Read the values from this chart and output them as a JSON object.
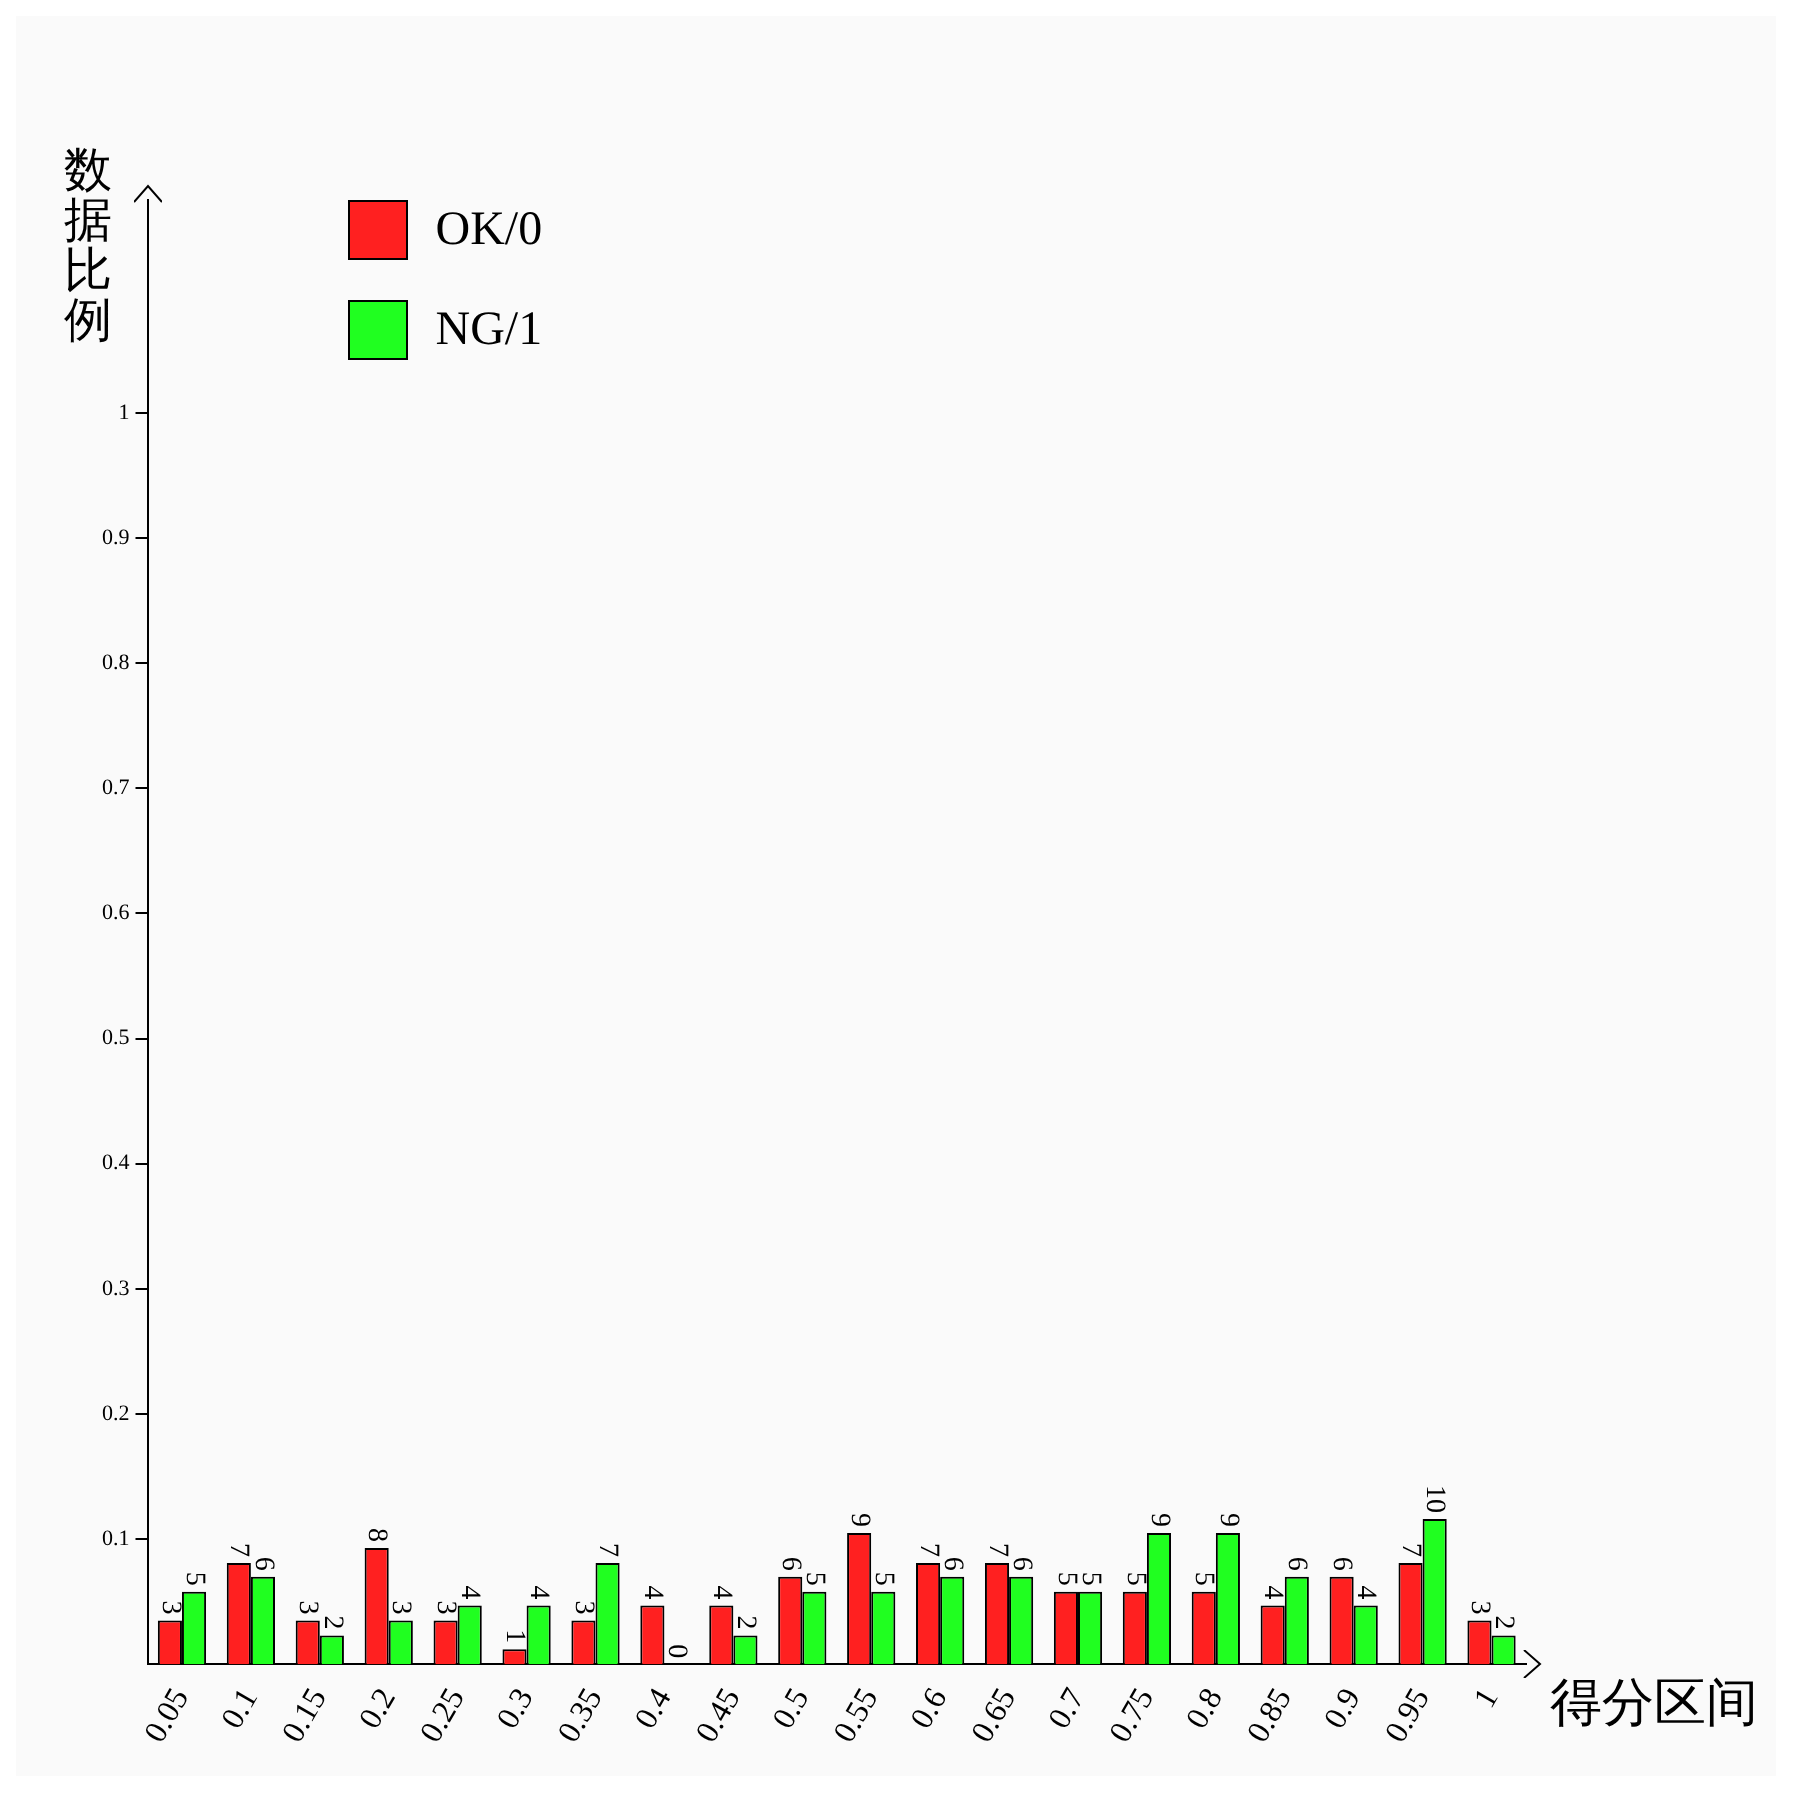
{
  "chart_data": {
    "type": "bar",
    "xlabel": "得分区间",
    "ylabel": "数据比例",
    "categories": [
      "0.05",
      "0.1",
      "0.15",
      "0.2",
      "0.25",
      "0.3",
      "0.35",
      "0.4",
      "0.45",
      "0.5",
      "0.55",
      "0.6",
      "0.65",
      "0.7",
      "0.75",
      "0.8",
      "0.85",
      "0.9",
      "0.95",
      "1"
    ],
    "series": [
      {
        "name": "OK/0",
        "color": "#ff2020",
        "values": [
          0.035,
          0.081,
          0.035,
          0.093,
          0.035,
          0.012,
          0.035,
          0.047,
          0.047,
          0.07,
          0.105,
          0.081,
          0.081,
          0.058,
          0.058,
          0.058,
          0.047,
          0.07,
          0.081,
          0.035
        ]
      },
      {
        "name": "NG/1",
        "color": "#20ff20",
        "values": [
          0.058,
          0.07,
          0.023,
          0.035,
          0.047,
          0.047,
          0.081,
          0,
          0.023,
          0.058,
          0.058,
          0.07,
          0.07,
          0.058,
          0.105,
          0.105,
          0.07,
          0.047,
          0.116,
          0.023
        ]
      }
    ],
    "annotations": [
      {
        "text": "3",
        "x": "0.05",
        "y": 0.035
      },
      {
        "text": "5",
        "x": "0.05",
        "y": 0.058
      },
      {
        "text": "7",
        "x": "0.1",
        "y": 0.081
      },
      {
        "text": "6",
        "x": "0.1",
        "y": 0.07
      },
      {
        "text": "3",
        "x": "0.15",
        "y": 0.035
      },
      {
        "text": "2",
        "x": "0.15",
        "y": 0.023
      },
      {
        "text": "8",
        "x": "0.2",
        "y": 0.093
      },
      {
        "text": "3",
        "x": "0.2",
        "y": 0.035
      },
      {
        "text": "3",
        "x": "0.25",
        "y": 0.035
      },
      {
        "text": "4",
        "x": "0.25",
        "y": 0.047
      },
      {
        "text": "1",
        "x": "0.3",
        "y": 0.012
      },
      {
        "text": "4",
        "x": "0.3",
        "y": 0.047
      },
      {
        "text": "3",
        "x": "0.35",
        "y": 0.035
      },
      {
        "text": "7",
        "x": "0.35",
        "y": 0.081
      },
      {
        "text": "4",
        "x": "0.4",
        "y": 0.047
      },
      {
        "text": "0",
        "x": "0.4",
        "y": 0
      },
      {
        "text": "4",
        "x": "0.45",
        "y": 0.047
      },
      {
        "text": "2",
        "x": "0.45",
        "y": 0.023
      },
      {
        "text": "6",
        "x": "0.5",
        "y": 0.07
      },
      {
        "text": "5",
        "x": "0.5",
        "y": 0.058
      },
      {
        "text": "9",
        "x": "0.55",
        "y": 0.105
      },
      {
        "text": "5",
        "x": "0.55",
        "y": 0.058
      },
      {
        "text": "7",
        "x": "0.6",
        "y": 0.081
      },
      {
        "text": "6",
        "x": "0.6",
        "y": 0.07
      },
      {
        "text": "7",
        "x": "0.65",
        "y": 0.081
      },
      {
        "text": "6",
        "x": "0.65",
        "y": 0.07
      },
      {
        "text": "5",
        "x": "0.7",
        "y": 0.058
      },
      {
        "text": "5",
        "x": "0.7",
        "y": 0.058
      },
      {
        "text": "5",
        "x": "0.75",
        "y": 0.058
      },
      {
        "text": "9",
        "x": "0.75",
        "y": 0.105
      },
      {
        "text": "5",
        "x": "0.8",
        "y": 0.058
      },
      {
        "text": "9",
        "x": "0.8",
        "y": 0.105
      },
      {
        "text": "4",
        "x": "0.85",
        "y": 0.047
      },
      {
        "text": "6",
        "x": "0.85",
        "y": 0.07
      },
      {
        "text": "6",
        "x": "0.9",
        "y": 0.07
      },
      {
        "text": "4",
        "x": "0.9",
        "y": 0.047
      },
      {
        "text": "7",
        "x": "0.95",
        "y": 0.081
      },
      {
        "text": "10",
        "x": "0.95",
        "y": 0.116
      },
      {
        "text": "3",
        "x": "1",
        "y": 0.035
      },
      {
        "text": "2",
        "x": "1",
        "y": 0.023
      }
    ],
    "ylim": [
      0,
      1.17
    ],
    "yticks": [
      0.1,
      0.2,
      0.3,
      0.4,
      0.5,
      0.6,
      0.7,
      0.8,
      0.9,
      1
    ],
    "grid": false,
    "legend": "top left"
  }
}
